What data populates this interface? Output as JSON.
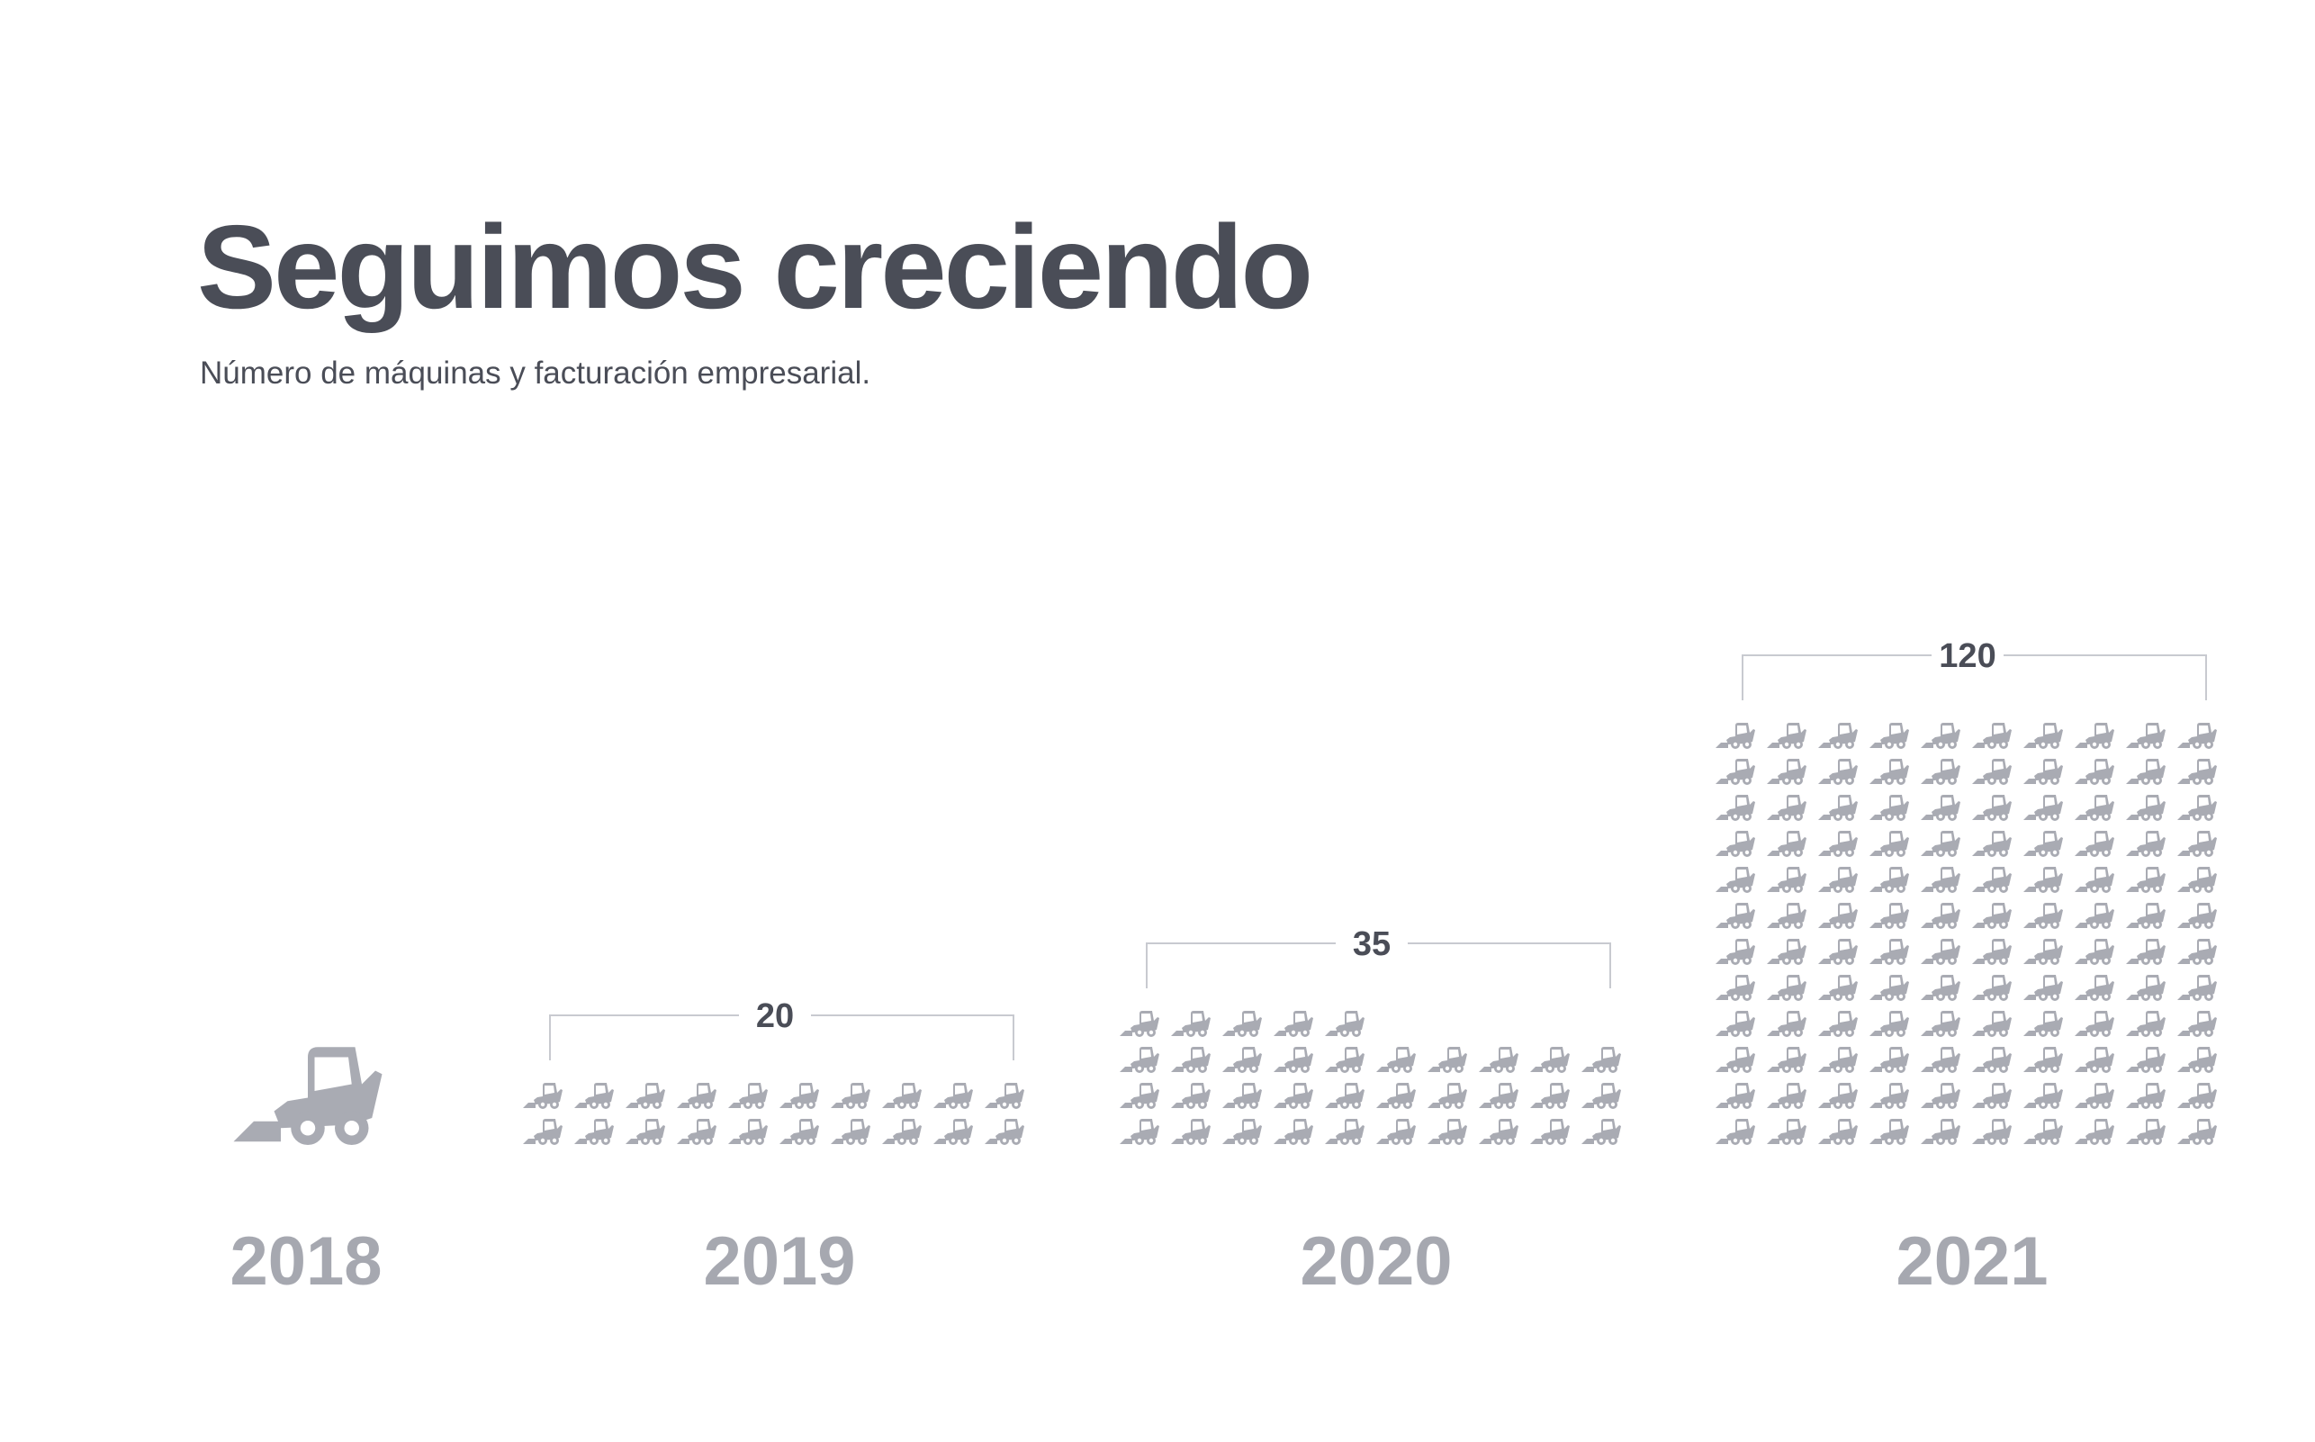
{
  "chart_data": {
    "type": "pictogram",
    "title": "Seguimos creciendo",
    "subtitle": "Número de máquinas y facturación empresarial.",
    "categories": [
      "2018",
      "2019",
      "2020",
      "2021"
    ],
    "values": [
      1,
      20,
      35,
      120
    ],
    "color": "#a9abb3"
  }
}
